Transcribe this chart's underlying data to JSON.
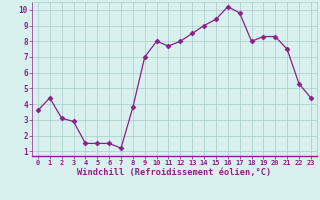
{
  "x": [
    0,
    1,
    2,
    3,
    4,
    5,
    6,
    7,
    8,
    9,
    10,
    11,
    12,
    13,
    14,
    15,
    16,
    17,
    18,
    19,
    20,
    21,
    22,
    23
  ],
  "y": [
    3.6,
    4.4,
    3.1,
    2.9,
    1.5,
    1.5,
    1.5,
    1.2,
    3.8,
    7.0,
    8.0,
    7.7,
    8.0,
    8.5,
    9.0,
    9.4,
    10.2,
    9.8,
    8.0,
    8.3,
    8.3,
    7.5,
    5.3,
    4.4
  ],
  "line_color": "#882288",
  "marker": "D",
  "marker_size": 2.5,
  "bg_color": "#d8f0ee",
  "grid_color": "#aacccc",
  "xlabel": "Windchill (Refroidissement éolien,°C)",
  "xlabel_color": "#882288",
  "tick_color": "#882288",
  "ylim_min": 0.7,
  "ylim_max": 10.5,
  "xlim_min": -0.5,
  "xlim_max": 23.5,
  "yticks": [
    1,
    2,
    3,
    4,
    5,
    6,
    7,
    8,
    9,
    10
  ],
  "xticks": [
    0,
    1,
    2,
    3,
    4,
    5,
    6,
    7,
    8,
    9,
    10,
    11,
    12,
    13,
    14,
    15,
    16,
    17,
    18,
    19,
    20,
    21,
    22,
    23
  ]
}
